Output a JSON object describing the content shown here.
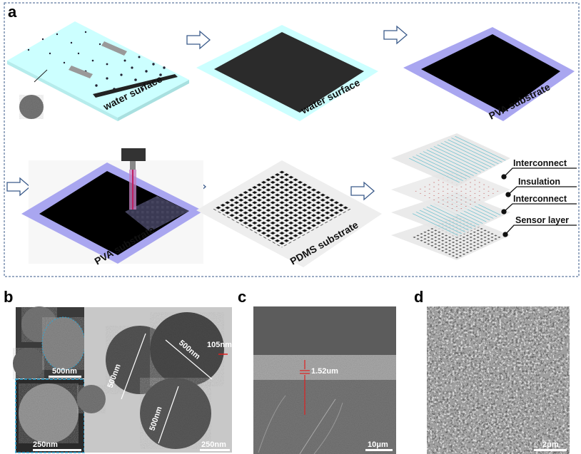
{
  "panels": {
    "a": {
      "label": "a",
      "step1_label": "water surface",
      "step2_label": "water surface",
      "step3_label": "PVA substrate",
      "step4_label": "PVA substrate",
      "step5_label": "PDMS substrate",
      "layers": [
        "Interconnect",
        "Insulation",
        "Interconnect",
        "Sensor layer"
      ]
    },
    "b": {
      "label": "b",
      "inset_top_scale": "500nm",
      "inset_bottom_scale": "250nm",
      "main_scale": "250nm",
      "diameters": [
        "500nm",
        "500nm",
        "500nm"
      ],
      "shell_thickness": "105nm"
    },
    "c": {
      "label": "c",
      "thickness": "1.52um",
      "scale": "10μm"
    },
    "d": {
      "label": "d",
      "scale": "2μm"
    }
  },
  "colors": {
    "water": "#ccffff",
    "pva": "#a9a6f0",
    "pdms": "#eeeeee",
    "film": "#2b2b2b",
    "arrow": "#3a5a8a",
    "interconnect": "#4fb8c8",
    "annotation": "#e02020",
    "frame": "#3a5a8a"
  }
}
